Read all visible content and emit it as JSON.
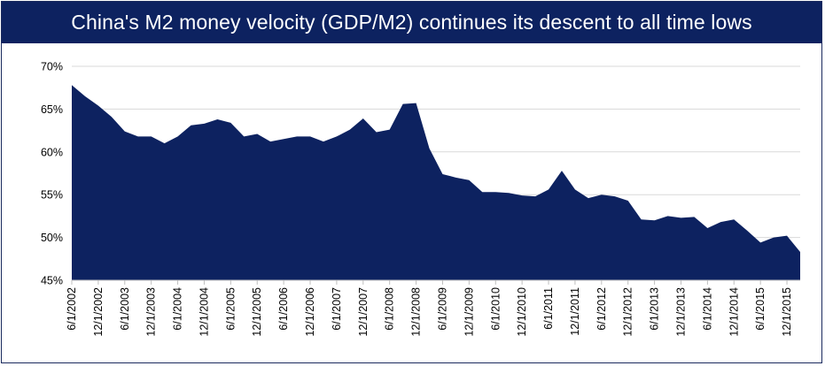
{
  "chart_data": {
    "type": "area",
    "title": "China's M2 money velocity (GDP/M2) continues its descent to all time lows",
    "xlabel": "",
    "ylabel": "",
    "ylim": [
      45,
      70
    ],
    "yticks": [
      "70%",
      "65%",
      "60%",
      "55%",
      "50%",
      "45%"
    ],
    "ytick_values": [
      70,
      65,
      60,
      55,
      50,
      45
    ],
    "xtick_labels": [
      "6/1/2002",
      "12/1/2002",
      "6/1/2003",
      "12/1/2003",
      "6/1/2004",
      "12/1/2004",
      "6/1/2005",
      "12/1/2005",
      "6/1/2006",
      "12/1/2006",
      "6/1/2007",
      "12/1/2007",
      "6/1/2008",
      "12/1/2008",
      "6/1/2009",
      "12/1/2009",
      "6/1/2010",
      "12/1/2010",
      "6/1/2011",
      "12/1/2011",
      "6/1/2012",
      "12/1/2012",
      "6/1/2013",
      "12/1/2013",
      "6/1/2014",
      "12/1/2014",
      "6/1/2015",
      "12/1/2015"
    ],
    "x": [
      "6/1/2002",
      "9/1/2002",
      "12/1/2002",
      "3/1/2003",
      "6/1/2003",
      "9/1/2003",
      "12/1/2003",
      "3/1/2004",
      "6/1/2004",
      "9/1/2004",
      "12/1/2004",
      "3/1/2005",
      "6/1/2005",
      "9/1/2005",
      "12/1/2005",
      "3/1/2006",
      "6/1/2006",
      "9/1/2006",
      "12/1/2006",
      "3/1/2007",
      "6/1/2007",
      "9/1/2007",
      "12/1/2007",
      "3/1/2008",
      "6/1/2008",
      "9/1/2008",
      "12/1/2008",
      "3/1/2009",
      "6/1/2009",
      "9/1/2009",
      "12/1/2009",
      "3/1/2010",
      "6/1/2010",
      "9/1/2010",
      "12/1/2010",
      "3/1/2011",
      "6/1/2011",
      "9/1/2011",
      "12/1/2011",
      "3/1/2012",
      "6/1/2012",
      "9/1/2012",
      "12/1/2012",
      "3/1/2013",
      "6/1/2013",
      "9/1/2013",
      "12/1/2013",
      "3/1/2014",
      "6/1/2014",
      "9/1/2014",
      "12/1/2014",
      "3/1/2015",
      "6/1/2015",
      "9/1/2015",
      "12/1/2015",
      "3/1/2016"
    ],
    "series": [
      {
        "name": "",
        "values": [
          67.8,
          66.5,
          65.4,
          64.1,
          62.4,
          61.8,
          61.8,
          61.0,
          61.8,
          63.1,
          63.3,
          63.8,
          63.4,
          61.8,
          62.1,
          61.2,
          61.5,
          61.8,
          61.8,
          61.2,
          61.8,
          62.6,
          63.9,
          62.3,
          62.6,
          65.6,
          65.7,
          60.4,
          57.4,
          57.0,
          56.7,
          55.3,
          55.3,
          55.2,
          54.9,
          54.8,
          55.6,
          57.8,
          55.6,
          54.6,
          55.0,
          54.8,
          54.3,
          52.1,
          52.0,
          52.5,
          52.3,
          52.4,
          51.1,
          51.8,
          52.1,
          50.8,
          49.4,
          50.0,
          50.2,
          48.3
        ],
        "color": "#0d2260"
      }
    ],
    "grid": true,
    "grid_color": "#d9d9d9",
    "fill_color": "#0d2260",
    "title_bg": "#0d2260",
    "title_color": "#ffffff",
    "legend": "none"
  }
}
